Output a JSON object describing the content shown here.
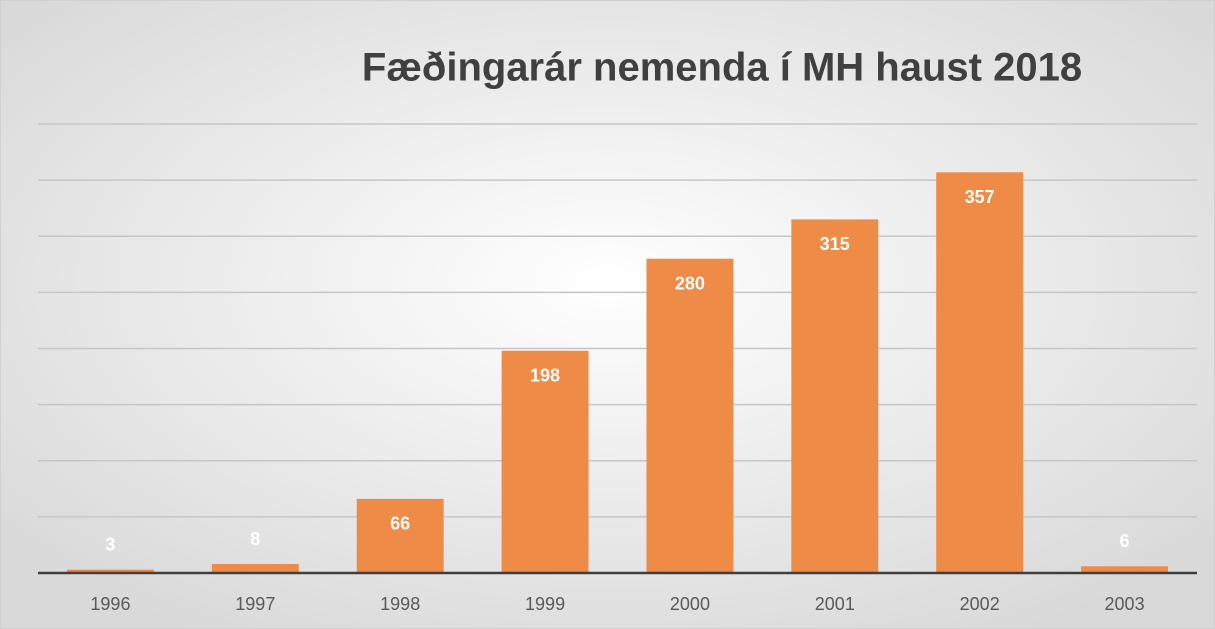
{
  "chart_data": {
    "type": "bar",
    "title": "Fæðingarár nemenda í MH haust 2018",
    "categories": [
      "1996",
      "1997",
      "1998",
      "1999",
      "2000",
      "2001",
      "2002",
      "2003"
    ],
    "values": [
      3,
      8,
      66,
      198,
      280,
      315,
      357,
      6
    ],
    "color": "#ed8b47",
    "ylim": [
      0,
      400
    ],
    "yticks": [
      0,
      50,
      100,
      150,
      200,
      250,
      300,
      350,
      400
    ],
    "grid": true
  }
}
